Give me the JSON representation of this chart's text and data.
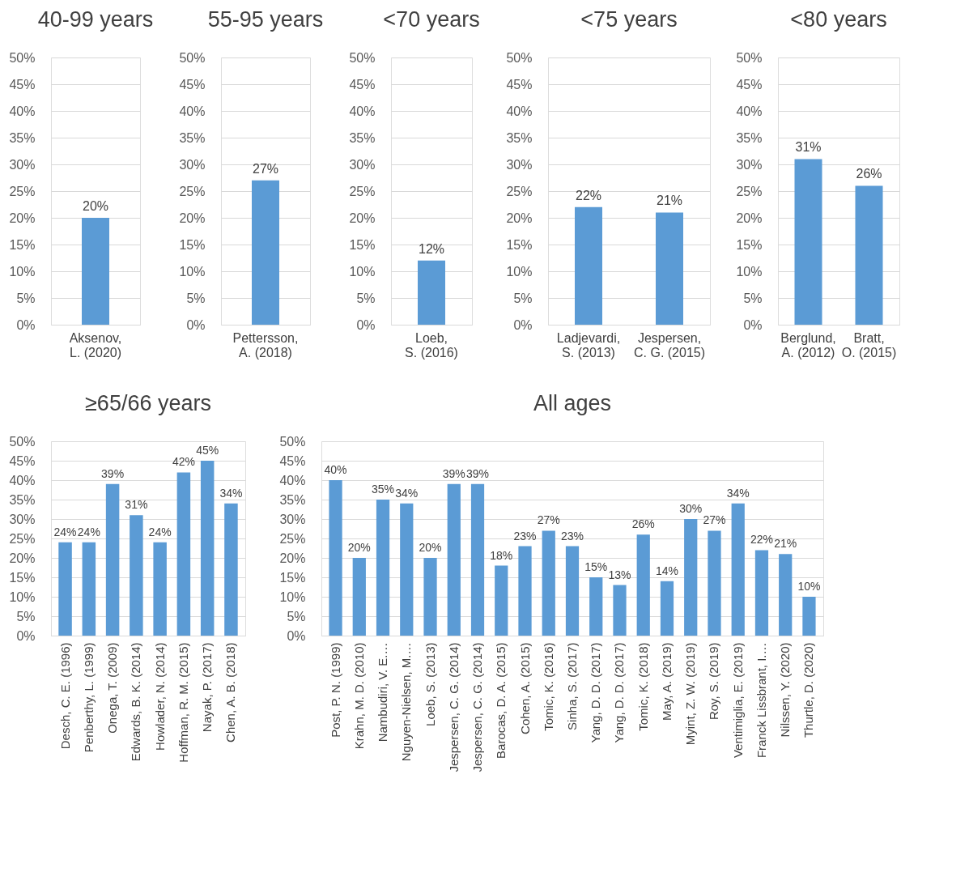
{
  "chart_data": [
    {
      "type": "bar",
      "title": "40-99 years",
      "categories": [
        "Aksenov, L. (2020)"
      ],
      "values": [
        20
      ],
      "value_labels": [
        "20%"
      ],
      "color": "#5b9bd5",
      "ylim": [
        0,
        50
      ],
      "yticks": [
        {
          "value": 0,
          "label": "0%"
        },
        {
          "value": 5,
          "label": "5%"
        },
        {
          "value": 10,
          "label": "10%"
        },
        {
          "value": 15,
          "label": "15%"
        },
        {
          "value": 20,
          "label": "20%"
        },
        {
          "value": 25,
          "label": "25%"
        },
        {
          "value": 30,
          "label": "30%"
        },
        {
          "value": 35,
          "label": "35%"
        },
        {
          "value": 40,
          "label": "40%"
        },
        {
          "value": 45,
          "label": "45%"
        },
        {
          "value": 50,
          "label": "50%"
        }
      ],
      "grid": "y"
    },
    {
      "type": "bar",
      "title": "55-95 years",
      "categories": [
        "Pettersson, A. (2018)"
      ],
      "values": [
        27
      ],
      "value_labels": [
        "27%"
      ],
      "color": "#5b9bd5",
      "ylim": [
        0,
        50
      ],
      "yticks": [
        {
          "value": 0,
          "label": "0%"
        },
        {
          "value": 5,
          "label": "5%"
        },
        {
          "value": 10,
          "label": "10%"
        },
        {
          "value": 15,
          "label": "15%"
        },
        {
          "value": 20,
          "label": "20%"
        },
        {
          "value": 25,
          "label": "25%"
        },
        {
          "value": 30,
          "label": "30%"
        },
        {
          "value": 35,
          "label": "35%"
        },
        {
          "value": 40,
          "label": "40%"
        },
        {
          "value": 45,
          "label": "45%"
        },
        {
          "value": 50,
          "label": "50%"
        }
      ],
      "grid": "y"
    },
    {
      "type": "bar",
      "title": "<70 years",
      "categories": [
        "Loeb, S. (2016)"
      ],
      "values": [
        12
      ],
      "value_labels": [
        "12%"
      ],
      "color": "#5b9bd5",
      "ylim": [
        0,
        50
      ],
      "yticks": [
        {
          "value": 0,
          "label": "0%"
        },
        {
          "value": 5,
          "label": "5%"
        },
        {
          "value": 10,
          "label": "10%"
        },
        {
          "value": 15,
          "label": "15%"
        },
        {
          "value": 20,
          "label": "20%"
        },
        {
          "value": 25,
          "label": "25%"
        },
        {
          "value": 30,
          "label": "30%"
        },
        {
          "value": 35,
          "label": "35%"
        },
        {
          "value": 40,
          "label": "40%"
        },
        {
          "value": 45,
          "label": "45%"
        },
        {
          "value": 50,
          "label": "50%"
        }
      ],
      "grid": "y"
    },
    {
      "type": "bar",
      "title": "<75 years",
      "categories": [
        "Ladjevardi, S. (2013)",
        "Jespersen, C. G. (2015)"
      ],
      "values": [
        22,
        21
      ],
      "value_labels": [
        "22%",
        "21%"
      ],
      "color": "#5b9bd5",
      "ylim": [
        0,
        50
      ],
      "yticks": [
        {
          "value": 0,
          "label": "0%"
        },
        {
          "value": 5,
          "label": "5%"
        },
        {
          "value": 10,
          "label": "10%"
        },
        {
          "value": 15,
          "label": "15%"
        },
        {
          "value": 20,
          "label": "20%"
        },
        {
          "value": 25,
          "label": "25%"
        },
        {
          "value": 30,
          "label": "30%"
        },
        {
          "value": 35,
          "label": "35%"
        },
        {
          "value": 40,
          "label": "40%"
        },
        {
          "value": 45,
          "label": "45%"
        },
        {
          "value": 50,
          "label": "50%"
        }
      ],
      "grid": "y"
    },
    {
      "type": "bar",
      "title": "<80 years",
      "categories": [
        "Berglund, A. (2012)",
        "Bratt, O. (2015)"
      ],
      "values": [
        31,
        26
      ],
      "value_labels": [
        "31%",
        "26%"
      ],
      "color": "#5b9bd5",
      "ylim": [
        0,
        50
      ],
      "yticks": [
        {
          "value": 0,
          "label": "0%"
        },
        {
          "value": 5,
          "label": "5%"
        },
        {
          "value": 10,
          "label": "10%"
        },
        {
          "value": 15,
          "label": "15%"
        },
        {
          "value": 20,
          "label": "20%"
        },
        {
          "value": 25,
          "label": "25%"
        },
        {
          "value": 30,
          "label": "30%"
        },
        {
          "value": 35,
          "label": "35%"
        },
        {
          "value": 40,
          "label": "40%"
        },
        {
          "value": 45,
          "label": "45%"
        },
        {
          "value": 50,
          "label": "50%"
        }
      ],
      "grid": "y"
    },
    {
      "type": "bar",
      "title": "≥65/66 years",
      "categories": [
        "Desch, C. E. (1996)",
        "Penberthy, L. (1999)",
        "Onega, T. (2009)",
        "Edwards, B. K. (2014)",
        "Howlader, N. (2014)",
        "Hoffman, R. M. (2015)",
        "Nayak, P. (2017)",
        "Chen, A. B. (2018)"
      ],
      "values": [
        24,
        24,
        39,
        31,
        24,
        42,
        45,
        34
      ],
      "value_labels": [
        "24%",
        "24%",
        "39%",
        "31%",
        "24%",
        "42%",
        "45%",
        "34%"
      ],
      "color": "#5b9bd5",
      "ylim": [
        0,
        50
      ],
      "yticks": [
        {
          "value": 0,
          "label": "0%"
        },
        {
          "value": 5,
          "label": "5%"
        },
        {
          "value": 10,
          "label": "10%"
        },
        {
          "value": 15,
          "label": "15%"
        },
        {
          "value": 20,
          "label": "20%"
        },
        {
          "value": 25,
          "label": "25%"
        },
        {
          "value": 30,
          "label": "30%"
        },
        {
          "value": 35,
          "label": "35%"
        },
        {
          "value": 40,
          "label": "40%"
        },
        {
          "value": 45,
          "label": "45%"
        },
        {
          "value": 50,
          "label": "50%"
        }
      ],
      "grid": "y"
    },
    {
      "type": "bar",
      "title": "All ages",
      "categories": [
        "Post, P. N. (1999)",
        "Krahn, M. D. (2010)",
        "Nambudiri, V. E.…",
        "Nguyen-Nielsen, M.…",
        "Loeb, S. (2013)",
        "Jespersen, C. G. (2014)",
        "Jespersen, C. G. (2014)",
        "Barocas, D. A. (2015)",
        "Cohen, A. (2015)",
        "Tomic, K. (2016)",
        "Sinha, S. (2017)",
        "Yang, D. D. (2017)",
        "Yang, D. D. (2017)",
        "Tomic, K. (2018)",
        "May, A. (2019)",
        "Myint, Z. W. (2019)",
        "Roy, S. (2019)",
        "Ventimiglia, E. (2019)",
        "Franck Lissbrant, I.…",
        "Nilssen, Y. (2020)",
        "Thurtle, D. (2020)"
      ],
      "values": [
        40,
        20,
        35,
        34,
        20,
        39,
        39,
        18,
        23,
        27,
        23,
        15,
        13,
        26,
        14,
        30,
        27,
        34,
        22,
        21,
        10
      ],
      "value_labels": [
        "40%",
        "20%",
        "35%",
        "34%",
        "20%",
        "39%",
        "39%",
        "18%",
        "23%",
        "27%",
        "23%",
        "15%",
        "13%",
        "26%",
        "14%",
        "30%",
        "27%",
        "34%",
        "22%",
        "21%",
        "10%"
      ],
      "color": "#5b9bd5",
      "ylim": [
        0,
        50
      ],
      "yticks": [
        {
          "value": 0,
          "label": "0%"
        },
        {
          "value": 5,
          "label": "5%"
        },
        {
          "value": 10,
          "label": "10%"
        },
        {
          "value": 15,
          "label": "15%"
        },
        {
          "value": 20,
          "label": "20%"
        },
        {
          "value": 25,
          "label": "25%"
        },
        {
          "value": 30,
          "label": "30%"
        },
        {
          "value": 35,
          "label": "35%"
        },
        {
          "value": 40,
          "label": "40%"
        },
        {
          "value": 45,
          "label": "45%"
        },
        {
          "value": 50,
          "label": "50%"
        }
      ],
      "grid": "y"
    }
  ]
}
